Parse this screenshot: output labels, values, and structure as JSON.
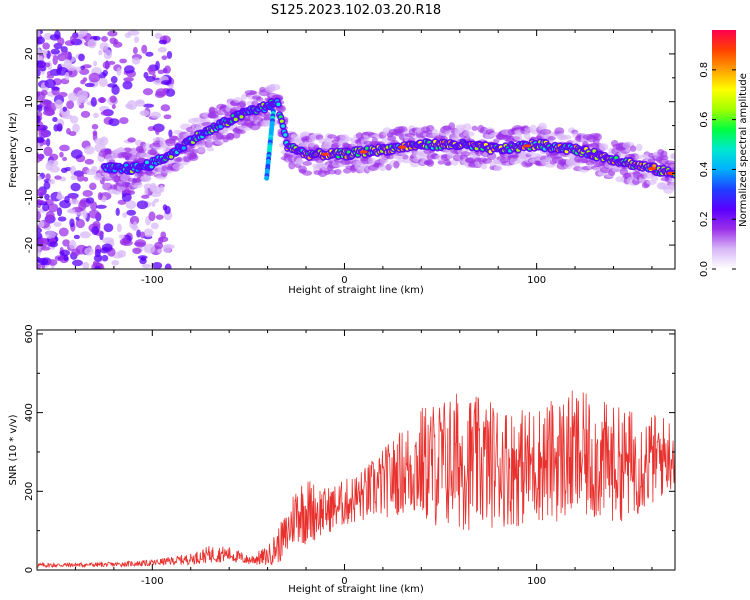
{
  "title": "S125.2023.102.03.20.R18",
  "colorbar": {
    "label": "Normalized spectral amplitude",
    "ticks": [
      "0.0",
      "0.2",
      "0.4",
      "0.6",
      "0.8"
    ],
    "tick_values": [
      0.0,
      0.2,
      0.4,
      0.6,
      0.8
    ],
    "range": [
      0.0,
      0.96
    ],
    "colors": [
      "#ffffff",
      "#d8b8f8",
      "#9b30e8",
      "#5a00ff",
      "#1e40ff",
      "#00b0ff",
      "#00e8d0",
      "#00ff40",
      "#a0ff00",
      "#ffff00",
      "#ffa000",
      "#ff4000",
      "#ff0050"
    ]
  },
  "chart_data": [
    {
      "type": "heatmap",
      "xlabel": "Height of straight line (km)",
      "ylabel": "Frequency (Hz)",
      "xlim": [
        -160,
        172
      ],
      "ylim": [
        -25,
        25
      ],
      "xticks": [
        -100,
        0,
        100
      ],
      "xtick_labels": [
        "-100",
        "0",
        "100"
      ],
      "yticks": [
        -20,
        -10,
        0,
        10,
        20
      ],
      "ytick_labels": [
        "-20",
        "-10",
        "0",
        "10",
        "20"
      ],
      "ridge": {
        "x": [
          -120,
          -110,
          -100,
          -90,
          -80,
          -70,
          -60,
          -50,
          -40,
          -35,
          -30,
          -20,
          -10,
          0,
          20,
          40,
          60,
          80,
          100,
          120,
          140,
          160,
          170
        ],
        "y": [
          -4,
          -4,
          -3,
          -1,
          2,
          4,
          6,
          8,
          9,
          10,
          1,
          -1,
          -1,
          -1,
          0,
          1,
          1,
          0,
          1,
          0,
          -2,
          -4,
          -5
        ]
      }
    },
    {
      "type": "line",
      "xlabel": "Height of straight line (km)",
      "ylabel": "SNR (10 * v/v)",
      "xlim": [
        -160,
        172
      ],
      "ylim": [
        0,
        610
      ],
      "xticks": [
        -100,
        0,
        100
      ],
      "xtick_labels": [
        "-100",
        "0",
        "100"
      ],
      "yticks": [
        0,
        200,
        400,
        600
      ],
      "ytick_labels": [
        "0",
        "200",
        "400",
        "600"
      ],
      "color": "#e8302d",
      "envelope": {
        "x": [
          -160,
          -120,
          -100,
          -80,
          -70,
          -60,
          -50,
          -40,
          -35,
          -30,
          -25,
          -20,
          -10,
          0,
          10,
          20,
          30,
          40,
          50,
          60,
          70,
          80,
          90,
          100,
          110,
          120,
          130,
          140,
          150,
          160,
          172
        ],
        "mean": [
          12,
          14,
          18,
          28,
          40,
          40,
          25,
          35,
          60,
          90,
          150,
          150,
          150,
          170,
          190,
          220,
          250,
          270,
          270,
          280,
          270,
          270,
          260,
          270,
          280,
          290,
          280,
          270,
          270,
          280,
          300
        ],
        "amp": [
          6,
          6,
          8,
          14,
          22,
          20,
          12,
          25,
          45,
          60,
          80,
          90,
          60,
          60,
          70,
          90,
          110,
          150,
          170,
          180,
          170,
          160,
          150,
          150,
          160,
          170,
          160,
          150,
          140,
          120,
          90
        ]
      }
    }
  ]
}
